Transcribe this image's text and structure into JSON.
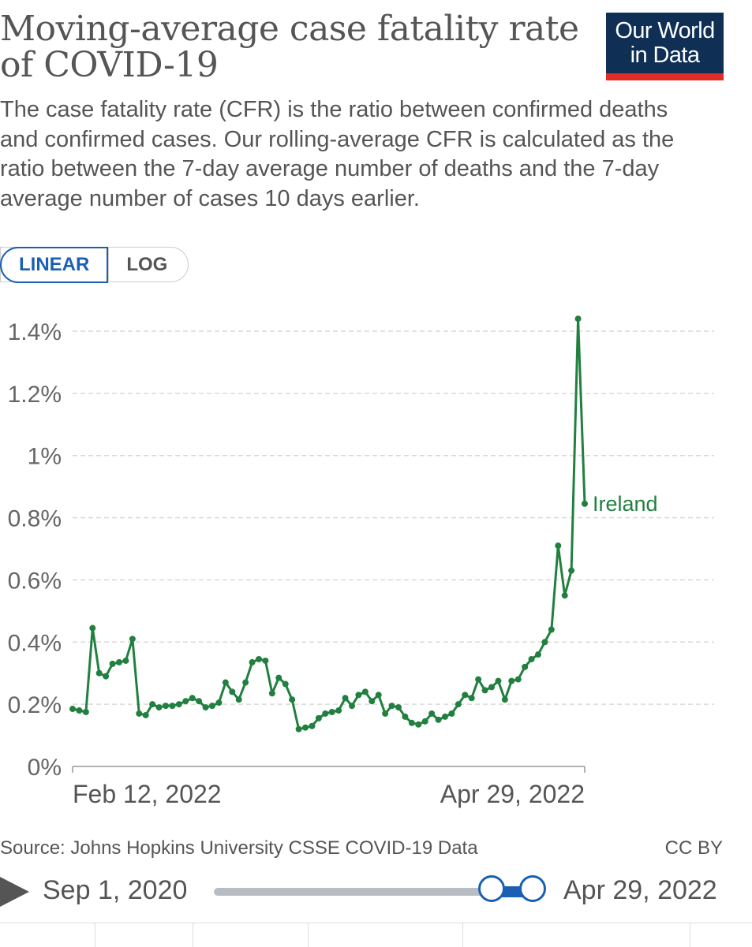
{
  "header": {
    "title": "Moving-average case fatality rate of COVID-19",
    "subtitle": "The case fatality rate (CFR) is the ratio between confirmed deaths and confirmed cases. Our rolling-average CFR is calculated as the ratio between the 7-day average number of deaths and the 7-day average number of cases 10 days earlier.",
    "logo_line1": "Our World",
    "logo_line2": "in Data"
  },
  "controls": {
    "linear_label": "LINEAR",
    "log_label": "LOG"
  },
  "colors": {
    "series": "#21803f",
    "accent": "#1a5fb4",
    "logo_bg": "#0f2f55",
    "logo_bar": "#e12c27"
  },
  "chart_data": {
    "type": "line",
    "title": "Moving-average case fatality rate of COVID-19",
    "y_ticks": [
      "0%",
      "0.2%",
      "0.4%",
      "0.6%",
      "0.8%",
      "1%",
      "1.2%",
      "1.4%"
    ],
    "ylim": [
      0,
      1.4
    ],
    "x_tick_labels": [
      "Feb 12, 2022",
      "Apr 29, 2022"
    ],
    "grid": true,
    "series": [
      {
        "name": "Ireland",
        "color": "#21803f",
        "unit": "%",
        "values": [
          0.185,
          0.18,
          0.175,
          0.445,
          0.3,
          0.29,
          0.33,
          0.335,
          0.34,
          0.41,
          0.17,
          0.165,
          0.2,
          0.19,
          0.195,
          0.195,
          0.2,
          0.21,
          0.22,
          0.21,
          0.19,
          0.195,
          0.205,
          0.27,
          0.24,
          0.215,
          0.27,
          0.335,
          0.345,
          0.34,
          0.235,
          0.285,
          0.265,
          0.215,
          0.12,
          0.125,
          0.13,
          0.155,
          0.17,
          0.175,
          0.18,
          0.22,
          0.195,
          0.23,
          0.24,
          0.21,
          0.23,
          0.17,
          0.195,
          0.19,
          0.16,
          0.14,
          0.135,
          0.145,
          0.17,
          0.15,
          0.16,
          0.17,
          0.2,
          0.23,
          0.22,
          0.28,
          0.245,
          0.255,
          0.275,
          0.215,
          0.275,
          0.28,
          0.32,
          0.345,
          0.36,
          0.4,
          0.44,
          0.71,
          0.55,
          0.63,
          1.44,
          0.845
        ]
      }
    ]
  },
  "footer": {
    "source": "Source: Johns Hopkins University CSSE COVID-19 Data",
    "license": "CC BY"
  },
  "timeline": {
    "start_date": "Sep 1, 2020",
    "end_date": "Apr 29, 2022"
  }
}
